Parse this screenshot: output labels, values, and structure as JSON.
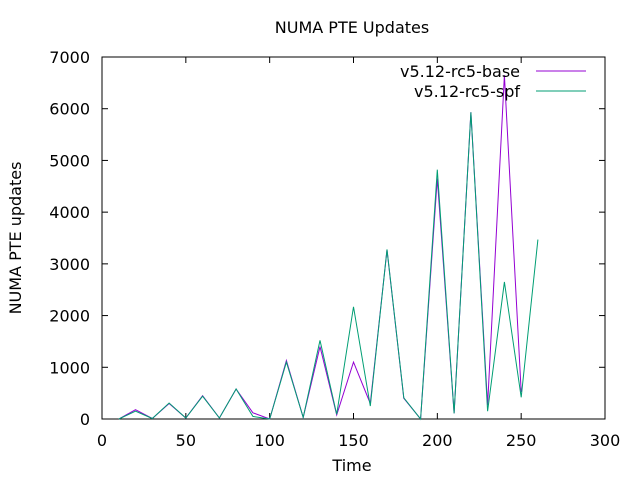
{
  "chart_data": {
    "type": "line",
    "title": "NUMA PTE Updates",
    "xlabel": "Time",
    "ylabel": "NUMA PTE updates",
    "xlim": [
      0,
      300
    ],
    "ylim": [
      0,
      7000
    ],
    "xticks": [
      "0",
      "50",
      "100",
      "150",
      "200",
      "250",
      "300"
    ],
    "yticks": [
      "0",
      "1000",
      "2000",
      "3000",
      "4000",
      "5000",
      "6000",
      "7000"
    ],
    "grid": false,
    "legend_position": "top-right",
    "series": [
      {
        "name": "v5.12-rc5-base",
        "color": "#9400d3",
        "x": [
          10,
          20,
          30,
          40,
          50,
          60,
          70,
          80,
          90,
          100,
          110,
          120,
          130,
          140,
          150,
          160,
          170,
          180,
          190,
          200,
          210,
          220,
          230,
          240,
          250
        ],
        "y": [
          0,
          180,
          10,
          300,
          20,
          450,
          20,
          580,
          120,
          0,
          1130,
          30,
          1400,
          80,
          1100,
          300,
          3270,
          400,
          0,
          4650,
          110,
          5930,
          270,
          6650,
          520
        ]
      },
      {
        "name": "v5.12-rc5-spf",
        "color": "#009e73",
        "x": [
          10,
          20,
          30,
          40,
          50,
          60,
          70,
          80,
          90,
          100,
          110,
          120,
          130,
          140,
          150,
          160,
          170,
          180,
          190,
          200,
          210,
          220,
          230,
          240,
          250,
          260
        ],
        "y": [
          0,
          150,
          10,
          310,
          20,
          440,
          20,
          580,
          50,
          0,
          1100,
          30,
          1520,
          90,
          2170,
          250,
          3280,
          410,
          0,
          4820,
          110,
          5930,
          150,
          2650,
          420,
          3470
        ]
      }
    ]
  }
}
